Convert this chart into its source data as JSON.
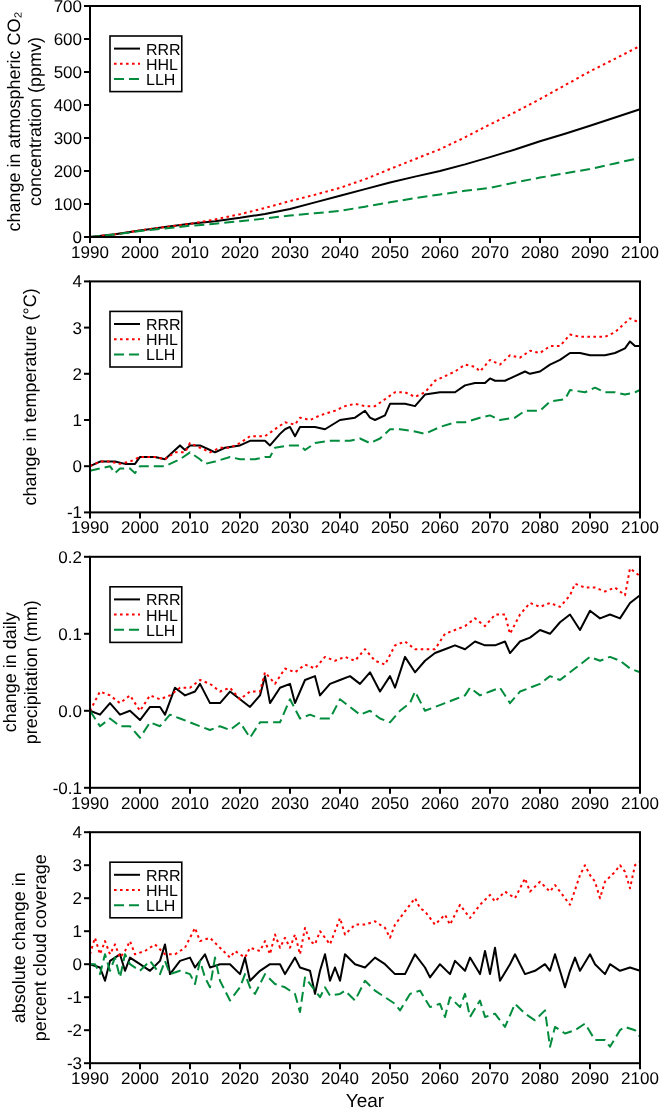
{
  "chart_data": [
    {
      "type": "line",
      "ylabel": "change in atmospheric CO₂\nconcentration (ppmv)",
      "xlim": [
        1990,
        2100
      ],
      "xticks": [
        1990,
        2000,
        2010,
        2020,
        2030,
        2040,
        2050,
        2060,
        2070,
        2080,
        2090,
        2100
      ],
      "ylim": [
        0,
        700
      ],
      "yticks": [
        0,
        100,
        200,
        300,
        400,
        500,
        600,
        700
      ],
      "legend": "top left",
      "series": [
        {
          "name": "RRR",
          "color": "#000000",
          "line_style": "solid",
          "x": [
            1990,
            1995,
            2000,
            2005,
            2010,
            2015,
            2020,
            2025,
            2030,
            2035,
            2040,
            2045,
            2050,
            2055,
            2060,
            2065,
            2070,
            2075,
            2080,
            2085,
            2090,
            2095,
            2100
          ],
          "values": [
            0,
            8,
            20,
            30,
            40,
            48,
            58,
            70,
            85,
            105,
            125,
            145,
            165,
            183,
            200,
            220,
            242,
            265,
            290,
            313,
            337,
            362,
            387
          ]
        },
        {
          "name": "HHL",
          "color": "#ff0000",
          "line_style": "dotted",
          "x": [
            1990,
            1995,
            2000,
            2005,
            2010,
            2015,
            2020,
            2025,
            2030,
            2035,
            2040,
            2045,
            2050,
            2055,
            2060,
            2065,
            2070,
            2075,
            2080,
            2085,
            2090,
            2095,
            2100
          ],
          "values": [
            0,
            8,
            20,
            30,
            40,
            53,
            69,
            88,
            109,
            128,
            149,
            175,
            206,
            236,
            266,
            302,
            341,
            378,
            418,
            460,
            502,
            540,
            579
          ]
        },
        {
          "name": "LLH",
          "color": "#008c3c",
          "line_style": "dashed",
          "x": [
            1990,
            1995,
            2000,
            2005,
            2010,
            2015,
            2020,
            2025,
            2030,
            2035,
            2040,
            2045,
            2050,
            2055,
            2060,
            2065,
            2070,
            2075,
            2080,
            2085,
            2090,
            2095,
            2100
          ],
          "values": [
            0,
            8,
            18,
            26,
            34,
            40,
            48,
            56,
            65,
            72,
            79,
            92,
            105,
            118,
            129,
            140,
            149,
            165,
            180,
            193,
            206,
            223,
            240
          ]
        }
      ]
    },
    {
      "type": "line",
      "ylabel": "change in temperature (°C)",
      "xlim": [
        1990,
        2100
      ],
      "xticks": [
        1990,
        2000,
        2010,
        2020,
        2030,
        2040,
        2050,
        2060,
        2070,
        2080,
        2090,
        2100
      ],
      "ylim": [
        -1,
        4
      ],
      "yticks": [
        -1,
        0,
        1,
        2,
        3,
        4
      ],
      "legend": "top left",
      "series": [
        {
          "name": "RRR",
          "color": "#000000",
          "line_style": "solid",
          "x": [
            1990,
            1992,
            1995,
            1997,
            1999,
            2000,
            2003,
            2005,
            2007,
            2008,
            2009,
            2010,
            2012,
            2014,
            2015,
            2017,
            2020,
            2022,
            2025,
            2026,
            2028,
            2029,
            2030,
            2031,
            2032,
            2035,
            2037,
            2040,
            2043,
            2045,
            2046,
            2047,
            2049,
            2050,
            2053,
            2055,
            2057,
            2060,
            2063,
            2065,
            2067,
            2069,
            2070,
            2071,
            2073,
            2075,
            2077,
            2078,
            2080,
            2082,
            2084,
            2086,
            2088,
            2090,
            2093,
            2095,
            2097,
            2098,
            2099,
            2100
          ],
          "values": [
            0,
            0.1,
            0.1,
            0.05,
            0.05,
            0.2,
            0.2,
            0.15,
            0.35,
            0.45,
            0.35,
            0.45,
            0.45,
            0.35,
            0.3,
            0.4,
            0.45,
            0.55,
            0.55,
            0.45,
            0.7,
            0.8,
            0.85,
            0.65,
            0.85,
            0.85,
            0.8,
            1.0,
            1.05,
            1.2,
            1.05,
            1.0,
            1.1,
            1.35,
            1.35,
            1.3,
            1.55,
            1.6,
            1.6,
            1.75,
            1.8,
            1.8,
            1.9,
            1.85,
            1.85,
            1.95,
            2.05,
            2.0,
            2.05,
            2.2,
            2.3,
            2.45,
            2.45,
            2.4,
            2.4,
            2.45,
            2.55,
            2.7,
            2.6,
            2.6
          ]
        },
        {
          "name": "HHL",
          "color": "#ff0000",
          "line_style": "dotted",
          "x": [
            1990,
            1992,
            1994,
            1996,
            1998,
            2000,
            2003,
            2005,
            2007,
            2009,
            2010,
            2012,
            2014,
            2016,
            2018,
            2020,
            2022,
            2025,
            2027,
            2029,
            2031,
            2032,
            2034,
            2036,
            2039,
            2041,
            2043,
            2045,
            2047,
            2049,
            2051,
            2053,
            2055,
            2057,
            2059,
            2061,
            2063,
            2065,
            2067,
            2068,
            2070,
            2072,
            2074,
            2076,
            2078,
            2080,
            2082,
            2084,
            2086,
            2088,
            2090,
            2093,
            2095,
            2096,
            2098,
            2100
          ],
          "values": [
            0,
            0.1,
            0.1,
            0.05,
            0.1,
            0.2,
            0.2,
            0.15,
            0.3,
            0.3,
            0.5,
            0.4,
            0.3,
            0.4,
            0.4,
            0.5,
            0.65,
            0.65,
            0.8,
            0.95,
            0.9,
            1.05,
            1.0,
            1.1,
            1.2,
            1.3,
            1.35,
            1.3,
            1.3,
            1.45,
            1.6,
            1.6,
            1.5,
            1.6,
            1.85,
            1.95,
            2.05,
            2.2,
            2.15,
            2.05,
            2.3,
            2.2,
            2.4,
            2.35,
            2.5,
            2.45,
            2.6,
            2.6,
            2.85,
            2.8,
            2.8,
            2.8,
            2.9,
            3.0,
            3.2,
            3.1
          ]
        },
        {
          "name": "LLH",
          "color": "#008c3c",
          "line_style": "dashed",
          "x": [
            1990,
            1992,
            1994,
            1995,
            1996,
            1998,
            1999,
            2000,
            2002,
            2005,
            2008,
            2010,
            2012,
            2013,
            2015,
            2018,
            2020,
            2023,
            2025,
            2026,
            2027,
            2030,
            2032,
            2033,
            2035,
            2038,
            2040,
            2042,
            2044,
            2046,
            2048,
            2050,
            2052,
            2055,
            2057,
            2060,
            2063,
            2065,
            2068,
            2070,
            2072,
            2075,
            2077,
            2080,
            2082,
            2085,
            2086,
            2089,
            2091,
            2093,
            2095,
            2097,
            2099,
            2100
          ],
          "values": [
            -0.1,
            -0.05,
            0,
            -0.15,
            -0.05,
            -0.05,
            -0.15,
            0,
            0,
            0,
            0.15,
            0.3,
            0.15,
            0.05,
            0.1,
            0.2,
            0.15,
            0.15,
            0.2,
            0.2,
            0.4,
            0.45,
            0.45,
            0.35,
            0.5,
            0.55,
            0.55,
            0.55,
            0.6,
            0.5,
            0.6,
            0.8,
            0.8,
            0.75,
            0.7,
            0.85,
            0.95,
            0.95,
            1.05,
            1.1,
            1.0,
            1.05,
            1.2,
            1.2,
            1.4,
            1.45,
            1.65,
            1.6,
            1.7,
            1.6,
            1.6,
            1.55,
            1.6,
            1.65
          ]
        }
      ]
    },
    {
      "type": "line",
      "ylabel": "change in daily\nprecipitation (mm)",
      "xlim": [
        1990,
        2100
      ],
      "xticks": [
        1990,
        2000,
        2010,
        2020,
        2030,
        2040,
        2050,
        2060,
        2070,
        2080,
        2090,
        2100
      ],
      "ylim": [
        -0.1,
        0.2
      ],
      "yticks": [
        -0.1,
        {
          "value": 0,
          "label": "0.0"
        },
        0.1,
        0.2
      ],
      "legend": "top left",
      "series": [
        {
          "name": "RRR",
          "color": "#000000",
          "line_style": "solid",
          "x": [
            1990,
            1992,
            1994,
            1996,
            1998,
            2000,
            2002,
            2004,
            2005,
            2007,
            2009,
            2011,
            2012,
            2014,
            2016,
            2018,
            2020,
            2022,
            2024,
            2025,
            2026,
            2028,
            2030,
            2031,
            2033,
            2035,
            2036,
            2038,
            2040,
            2042,
            2044,
            2046,
            2048,
            2050,
            2051,
            2053,
            2055,
            2057,
            2059,
            2061,
            2063,
            2065,
            2067,
            2069,
            2071,
            2073,
            2074,
            2076,
            2078,
            2080,
            2082,
            2084,
            2086,
            2088,
            2090,
            2092,
            2094,
            2096,
            2098,
            2100
          ],
          "values": [
            0,
            -0.005,
            0.01,
            -0.005,
            0,
            -0.012,
            0.005,
            0.005,
            -0.005,
            0.03,
            0.02,
            0.025,
            0.035,
            0.01,
            0.01,
            0.025,
            0.015,
            0.005,
            0.02,
            0.045,
            0.01,
            0.03,
            0.035,
            0.01,
            0.04,
            0.045,
            0.02,
            0.035,
            0.04,
            0.045,
            0.035,
            0.05,
            0.025,
            0.045,
            0.03,
            0.07,
            0.05,
            0.065,
            0.075,
            0.08,
            0.085,
            0.08,
            0.09,
            0.085,
            0.085,
            0.09,
            0.075,
            0.09,
            0.095,
            0.105,
            0.1,
            0.115,
            0.125,
            0.105,
            0.13,
            0.12,
            0.125,
            0.12,
            0.14,
            0.15
          ]
        },
        {
          "name": "HHL",
          "color": "#ff0000",
          "line_style": "dotted",
          "x": [
            1990,
            1992,
            1994,
            1996,
            1998,
            2000,
            2002,
            2004,
            2006,
            2008,
            2010,
            2012,
            2014,
            2016,
            2018,
            2020,
            2022,
            2024,
            2025,
            2027,
            2029,
            2031,
            2033,
            2035,
            2037,
            2039,
            2041,
            2043,
            2045,
            2047,
            2049,
            2051,
            2053,
            2055,
            2057,
            2059,
            2061,
            2063,
            2065,
            2067,
            2069,
            2071,
            2073,
            2074,
            2076,
            2078,
            2080,
            2082,
            2084,
            2086,
            2087,
            2089,
            2091,
            2093,
            2095,
            2097,
            2098,
            2100
          ],
          "values": [
            0,
            0.025,
            0.02,
            0.01,
            0.02,
            0,
            0.02,
            0.015,
            0.02,
            0.03,
            0.03,
            0.04,
            0.035,
            0.025,
            0.03,
            0.015,
            0.025,
            0.025,
            0.05,
            0.035,
            0.055,
            0.05,
            0.06,
            0.055,
            0.07,
            0.065,
            0.07,
            0.065,
            0.08,
            0.065,
            0.06,
            0.085,
            0.09,
            0.08,
            0.08,
            0.08,
            0.1,
            0.105,
            0.11,
            0.12,
            0.11,
            0.125,
            0.125,
            0.1,
            0.125,
            0.14,
            0.135,
            0.14,
            0.135,
            0.15,
            0.165,
            0.16,
            0.16,
            0.155,
            0.16,
            0.15,
            0.185,
            0.175
          ]
        },
        {
          "name": "LLH",
          "color": "#008c3c",
          "line_style": "dashed",
          "x": [
            1990,
            1992,
            1994,
            1996,
            1998,
            2000,
            2002,
            2004,
            2006,
            2008,
            2010,
            2012,
            2014,
            2016,
            2018,
            2020,
            2022,
            2024,
            2026,
            2028,
            2030,
            2032,
            2034,
            2036,
            2038,
            2040,
            2042,
            2044,
            2046,
            2048,
            2050,
            2052,
            2054,
            2055,
            2057,
            2059,
            2061,
            2063,
            2065,
            2066,
            2068,
            2070,
            2072,
            2074,
            2076,
            2078,
            2080,
            2082,
            2084,
            2086,
            2088,
            2090,
            2092,
            2094,
            2096,
            2098,
            2100
          ],
          "values": [
            0,
            -0.02,
            -0.01,
            -0.02,
            -0.02,
            -0.035,
            -0.015,
            -0.02,
            -0.005,
            -0.01,
            -0.015,
            -0.02,
            -0.025,
            -0.02,
            -0.025,
            -0.015,
            -0.035,
            -0.015,
            -0.015,
            -0.015,
            0.015,
            -0.01,
            -0.005,
            -0.01,
            -0.01,
            0.015,
            0.005,
            -0.005,
            0,
            -0.01,
            -0.015,
            0,
            0.01,
            0.025,
            0,
            0.005,
            0.01,
            0.015,
            0.02,
            0.03,
            0.02,
            0.025,
            0.03,
            0.01,
            0.025,
            0.03,
            0.035,
            0.045,
            0.04,
            0.05,
            0.06,
            0.07,
            0.065,
            0.07,
            0.065,
            0.055,
            0.05
          ]
        }
      ]
    },
    {
      "type": "line",
      "ylabel": "absolute change in\npercent cloud coverage",
      "xlabel": "Year",
      "xlim": [
        1990,
        2100
      ],
      "xticks": [
        1990,
        2000,
        2010,
        2020,
        2030,
        2040,
        2050,
        2060,
        2070,
        2080,
        2090,
        2100
      ],
      "ylim": [
        -3,
        4
      ],
      "yticks": [
        -3,
        -2,
        -1,
        0,
        1,
        2,
        3,
        4
      ],
      "legend": "top left",
      "series": [
        {
          "name": "RRR",
          "color": "#000000",
          "line_style": "solid",
          "x": [
            1990,
            1992,
            1993,
            1994,
            1996,
            1997,
            1998,
            2000,
            2002,
            2004,
            2005,
            2006,
            2008,
            2010,
            2011,
            2013,
            2014,
            2016,
            2018,
            2020,
            2021,
            2022,
            2024,
            2026,
            2028,
            2029,
            2031,
            2032,
            2034,
            2035,
            2036,
            2037,
            2038,
            2039,
            2040,
            2041,
            2043,
            2045,
            2047,
            2049,
            2051,
            2053,
            2055,
            2057,
            2058,
            2060,
            2062,
            2063,
            2065,
            2066,
            2068,
            2069,
            2070,
            2071,
            2072,
            2074,
            2075,
            2077,
            2079,
            2081,
            2082,
            2083,
            2084,
            2085,
            2086,
            2087,
            2088,
            2090,
            2091,
            2093,
            2094,
            2096,
            2098,
            2100
          ],
          "values": [
            0,
            -0.1,
            -0.5,
            0.1,
            0.3,
            -0.2,
            0.2,
            0,
            -0.2,
            0.1,
            0.6,
            -0.3,
            0.1,
            0.2,
            -0.1,
            0.3,
            -0.1,
            0,
            0,
            -0.3,
            0.2,
            -0.5,
            -0.2,
            0,
            0,
            -0.3,
            0.2,
            -0.1,
            -0.2,
            -0.9,
            -0.2,
            0.3,
            -0.5,
            -0.1,
            -0.5,
            0.3,
            0,
            -0.1,
            0.2,
            0,
            -0.3,
            -0.3,
            0.3,
            -0.1,
            -0.4,
            0,
            -0.3,
            0.1,
            -0.2,
            0.2,
            -0.3,
            0.4,
            -0.3,
            0.5,
            -0.5,
            0,
            0.3,
            -0.3,
            -0.2,
            0,
            -0.2,
            0.3,
            -0.2,
            -0.7,
            -0.2,
            0.2,
            -0.2,
            0.3,
            0,
            -0.3,
            0,
            -0.2,
            -0.1,
            -0.2
          ]
        },
        {
          "name": "HHL",
          "color": "#ff0000",
          "line_style": "dotted",
          "x": [
            1990,
            1991,
            1992,
            1993,
            1994,
            1995,
            1996,
            1997,
            1998,
            1999,
            2001,
            2003,
            2005,
            2007,
            2009,
            2011,
            2012,
            2014,
            2016,
            2018,
            2019,
            2021,
            2022,
            2024,
            2025,
            2026,
            2027,
            2028,
            2029,
            2030,
            2031,
            2032,
            2033,
            2034,
            2035,
            2036,
            2037,
            2038,
            2039,
            2040,
            2041,
            2043,
            2045,
            2047,
            2049,
            2050,
            2051,
            2053,
            2055,
            2056,
            2057,
            2059,
            2061,
            2062,
            2064,
            2066,
            2068,
            2070,
            2071,
            2073,
            2075,
            2077,
            2078,
            2080,
            2082,
            2083,
            2085,
            2086,
            2088,
            2089,
            2090,
            2091,
            2092,
            2093,
            2095,
            2096,
            2097,
            2098,
            2099,
            2100
          ],
          "values": [
            0.3,
            0.8,
            0.3,
            0.7,
            0.3,
            0.6,
            0.2,
            0.4,
            0.7,
            0.3,
            0.4,
            0.6,
            0.3,
            0.3,
            0.5,
            1.1,
            0.7,
            0.8,
            0.5,
            0.2,
            0.4,
            0.2,
            0.5,
            0.4,
            0.7,
            0.3,
            0.9,
            0.5,
            0.8,
            0.5,
            0.9,
            0.3,
            1.1,
            0.7,
            0.6,
            1.0,
            0.8,
            0.6,
            1.0,
            1.4,
            0.9,
            1.2,
            1.2,
            1.3,
            1.1,
            0.8,
            1.2,
            1.6,
            2.0,
            1.7,
            1.6,
            1.2,
            1.5,
            1.2,
            1.8,
            1.4,
            1.8,
            2.1,
            1.9,
            2.2,
            2.0,
            2.6,
            2.2,
            2.5,
            2.2,
            2.4,
            2.0,
            1.8,
            2.7,
            3.0,
            2.7,
            2.5,
            2.0,
            2.5,
            2.8,
            3.0,
            2.8,
            2.3,
            3.0,
            3.1
          ]
        },
        {
          "name": "LLH",
          "color": "#008c3c",
          "line_style": "dashed",
          "x": [
            1990,
            1991,
            1992,
            1993,
            1994,
            1995,
            1996,
            1997,
            1998,
            2000,
            2002,
            2004,
            2005,
            2006,
            2008,
            2010,
            2011,
            2012,
            2013,
            2014,
            2015,
            2016,
            2018,
            2019,
            2020,
            2021,
            2022,
            2023,
            2024,
            2025,
            2027,
            2029,
            2031,
            2032,
            2033,
            2035,
            2036,
            2037,
            2038,
            2040,
            2041,
            2043,
            2045,
            2047,
            2049,
            2051,
            2052,
            2054,
            2056,
            2058,
            2060,
            2061,
            2062,
            2064,
            2065,
            2066,
            2068,
            2069,
            2071,
            2073,
            2075,
            2077,
            2079,
            2081,
            2082,
            2083,
            2085,
            2087,
            2089,
            2091,
            2093,
            2094,
            2096,
            2097,
            2099,
            2100
          ],
          "values": [
            0,
            0,
            -0.3,
            0.3,
            -0.2,
            0.2,
            -0.4,
            0.3,
            0,
            -0.2,
            0.1,
            -0.3,
            0.1,
            -0.3,
            -0.2,
            -0.3,
            -0.6,
            0.1,
            -0.4,
            -0.7,
            0.2,
            -0.5,
            -1.1,
            -0.9,
            -0.7,
            -0.3,
            -0.7,
            -0.9,
            -0.6,
            -0.3,
            -0.6,
            -0.7,
            -0.9,
            -1.45,
            -0.4,
            -0.8,
            -1.0,
            -0.7,
            -0.95,
            -0.9,
            -0.8,
            -1.1,
            -0.5,
            -0.8,
            -1.0,
            -1.2,
            -1.4,
            -0.9,
            -0.8,
            -1.3,
            -1.2,
            -1.6,
            -1.0,
            -1.3,
            -0.9,
            -1.6,
            -1.1,
            -1.6,
            -1.5,
            -1.9,
            -1.2,
            -1.5,
            -1.7,
            -1.4,
            -2.5,
            -1.9,
            -2.1,
            -2.0,
            -1.8,
            -2.3,
            -2.3,
            -2.5,
            -2.0,
            -1.9,
            -2.0,
            -2.2
          ]
        }
      ]
    }
  ]
}
